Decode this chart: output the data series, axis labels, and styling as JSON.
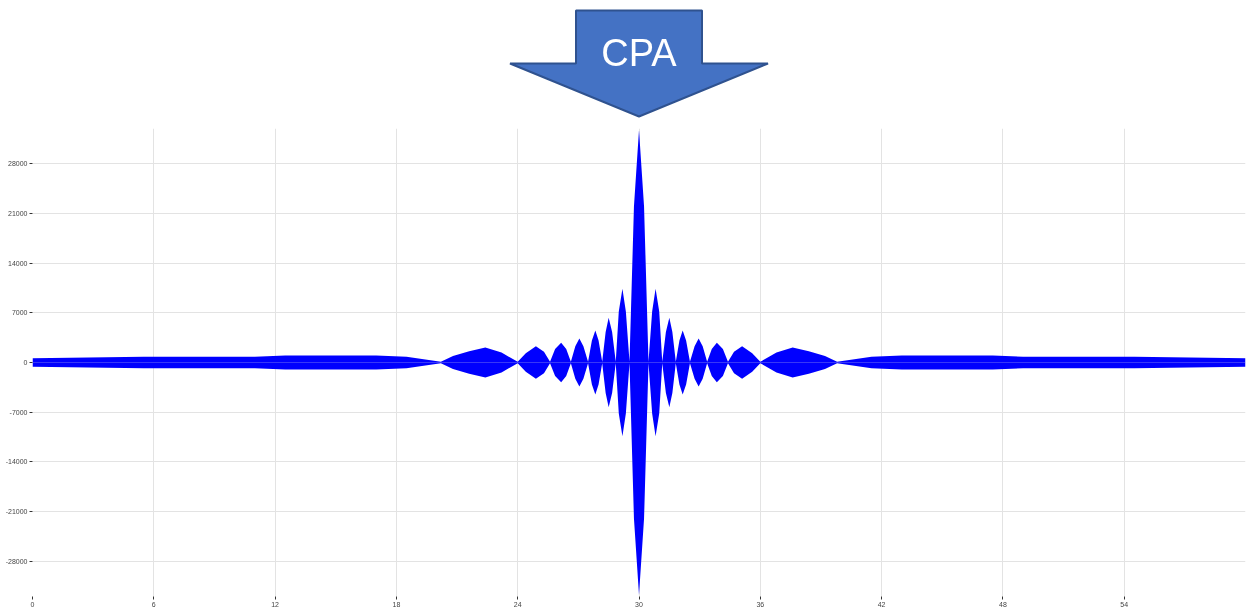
{
  "chart_data": {
    "type": "area",
    "x": [
      0,
      5.5,
      11,
      12.5,
      17,
      18.5,
      20.2,
      20.8,
      21.6,
      22.4,
      23.2,
      24,
      24.4,
      24.9,
      25.3,
      25.6,
      25.85,
      26.15,
      26.4,
      26.63,
      26.85,
      27.05,
      27.25,
      27.48,
      27.67,
      27.84,
      28,
      28.18,
      28.35,
      28.5,
      28.67,
      28.85,
      29,
      29.18,
      29.35,
      29.53,
      29.75,
      30,
      30.25,
      30.47,
      30.65,
      30.82,
      31,
      31.15,
      31.33,
      31.5,
      31.65,
      31.82,
      32,
      32.16,
      32.33,
      32.52,
      32.75,
      32.95,
      33.15,
      33.37,
      33.6,
      33.85,
      34.15,
      34.4,
      34.7,
      35.1,
      35.6,
      36,
      36.8,
      37.6,
      38.4,
      39.2,
      39.8,
      41.5,
      43,
      47.5,
      49,
      54.5,
      60
    ],
    "series": [
      {
        "color": "#0000ff",
        "values": [
          600,
          800,
          800,
          1000,
          1000,
          800,
          100,
          900,
          1600,
          2100,
          1400,
          100,
          1300,
          2300,
          1500,
          100,
          1900,
          2800,
          1900,
          100,
          2300,
          3400,
          2300,
          100,
          3100,
          4500,
          3100,
          100,
          4300,
          6300,
          4300,
          100,
          7200,
          10400,
          7200,
          100,
          22000,
          32800,
          22000,
          100,
          7200,
          10400,
          7200,
          100,
          4300,
          6300,
          4300,
          100,
          3100,
          4500,
          3100,
          100,
          2300,
          3400,
          2300,
          100,
          1900,
          2800,
          1900,
          100,
          1500,
          2300,
          1300,
          100,
          1400,
          2100,
          1600,
          900,
          100,
          800,
          1000,
          1000,
          800,
          800,
          600
        ]
      },
      {
        "color": "#0000fe",
        "values": [
          -600,
          -800,
          -800,
          -1000,
          -1000,
          -800,
          -100,
          -900,
          -1600,
          -2100,
          -1400,
          -100,
          -1300,
          -2300,
          -1500,
          -100,
          -1900,
          -2800,
          -1900,
          -100,
          -2300,
          -3400,
          -2300,
          -100,
          -3100,
          -4500,
          -3100,
          -100,
          -4300,
          -6300,
          -4300,
          -100,
          -7200,
          -10400,
          -7200,
          -100,
          -22000,
          -32800,
          -22000,
          -100,
          -7200,
          -10400,
          -7200,
          -100,
          -4300,
          -6300,
          -4300,
          -100,
          -3100,
          -4500,
          -3100,
          -100,
          -2300,
          -3400,
          -2300,
          -100,
          -1900,
          -2800,
          -1900,
          -100,
          -1500,
          -2300,
          -1300,
          -100,
          -1400,
          -2100,
          -1600,
          -900,
          -100,
          -800,
          -1000,
          -1000,
          -800,
          -800,
          -600
        ]
      }
    ],
    "xlim": [
      0,
      60
    ],
    "ylim": [
      -33000,
      33000
    ],
    "xticks": [
      0,
      6,
      12,
      18,
      24,
      30,
      36,
      42,
      48,
      54
    ],
    "yticks": [
      -28000,
      -21000,
      -14000,
      -7000,
      0,
      7000,
      14000,
      21000,
      28000
    ],
    "grid": true,
    "annotations": [
      "CPA"
    ]
  }
}
